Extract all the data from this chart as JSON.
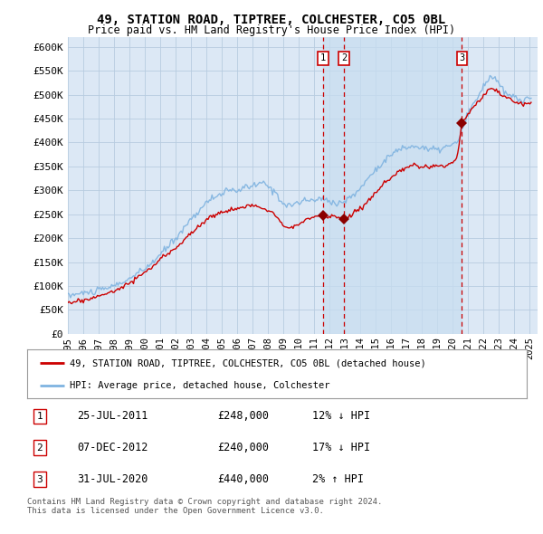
{
  "title": "49, STATION ROAD, TIPTREE, COLCHESTER, CO5 0BL",
  "subtitle": "Price paid vs. HM Land Registry's House Price Index (HPI)",
  "ylabel_ticks": [
    "£0",
    "£50K",
    "£100K",
    "£150K",
    "£200K",
    "£250K",
    "£300K",
    "£350K",
    "£400K",
    "£450K",
    "£500K",
    "£550K",
    "£600K"
  ],
  "ytick_values": [
    0,
    50000,
    100000,
    150000,
    200000,
    250000,
    300000,
    350000,
    400000,
    450000,
    500000,
    550000,
    600000
  ],
  "xlim_start": 1995.0,
  "xlim_end": 2025.5,
  "ylim_min": 0,
  "ylim_max": 620000,
  "plot_bg_color": "#dce8f5",
  "grid_color": "#b8cce0",
  "hpi_color": "#7fb3e0",
  "price_color": "#cc0000",
  "vline_color_sale": "#cc0000",
  "sale_marker_color": "#8b0000",
  "highlight_color": "#c5d8ef",
  "transactions": [
    {
      "label": "1",
      "date_label": "25-JUL-2011",
      "year": 2011.56,
      "price": 248000,
      "hpi_pct": "12%",
      "hpi_dir": "↓"
    },
    {
      "label": "2",
      "date_label": "07-DEC-2012",
      "year": 2012.93,
      "price": 240000,
      "hpi_pct": "17%",
      "hpi_dir": "↓"
    },
    {
      "label": "3",
      "date_label": "31-JUL-2020",
      "year": 2020.58,
      "price": 440000,
      "hpi_pct": "2%",
      "hpi_dir": "↑"
    }
  ],
  "legend_house_label": "49, STATION ROAD, TIPTREE, COLCHESTER, CO5 0BL (detached house)",
  "legend_hpi_label": "HPI: Average price, detached house, Colchester",
  "footnote": "Contains HM Land Registry data © Crown copyright and database right 2024.\nThis data is licensed under the Open Government Licence v3.0.",
  "xtick_years": [
    1995,
    1996,
    1997,
    1998,
    1999,
    2000,
    2001,
    2002,
    2003,
    2004,
    2005,
    2006,
    2007,
    2008,
    2009,
    2010,
    2011,
    2012,
    2013,
    2014,
    2015,
    2016,
    2017,
    2018,
    2019,
    2020,
    2021,
    2022,
    2023,
    2024,
    2025
  ]
}
